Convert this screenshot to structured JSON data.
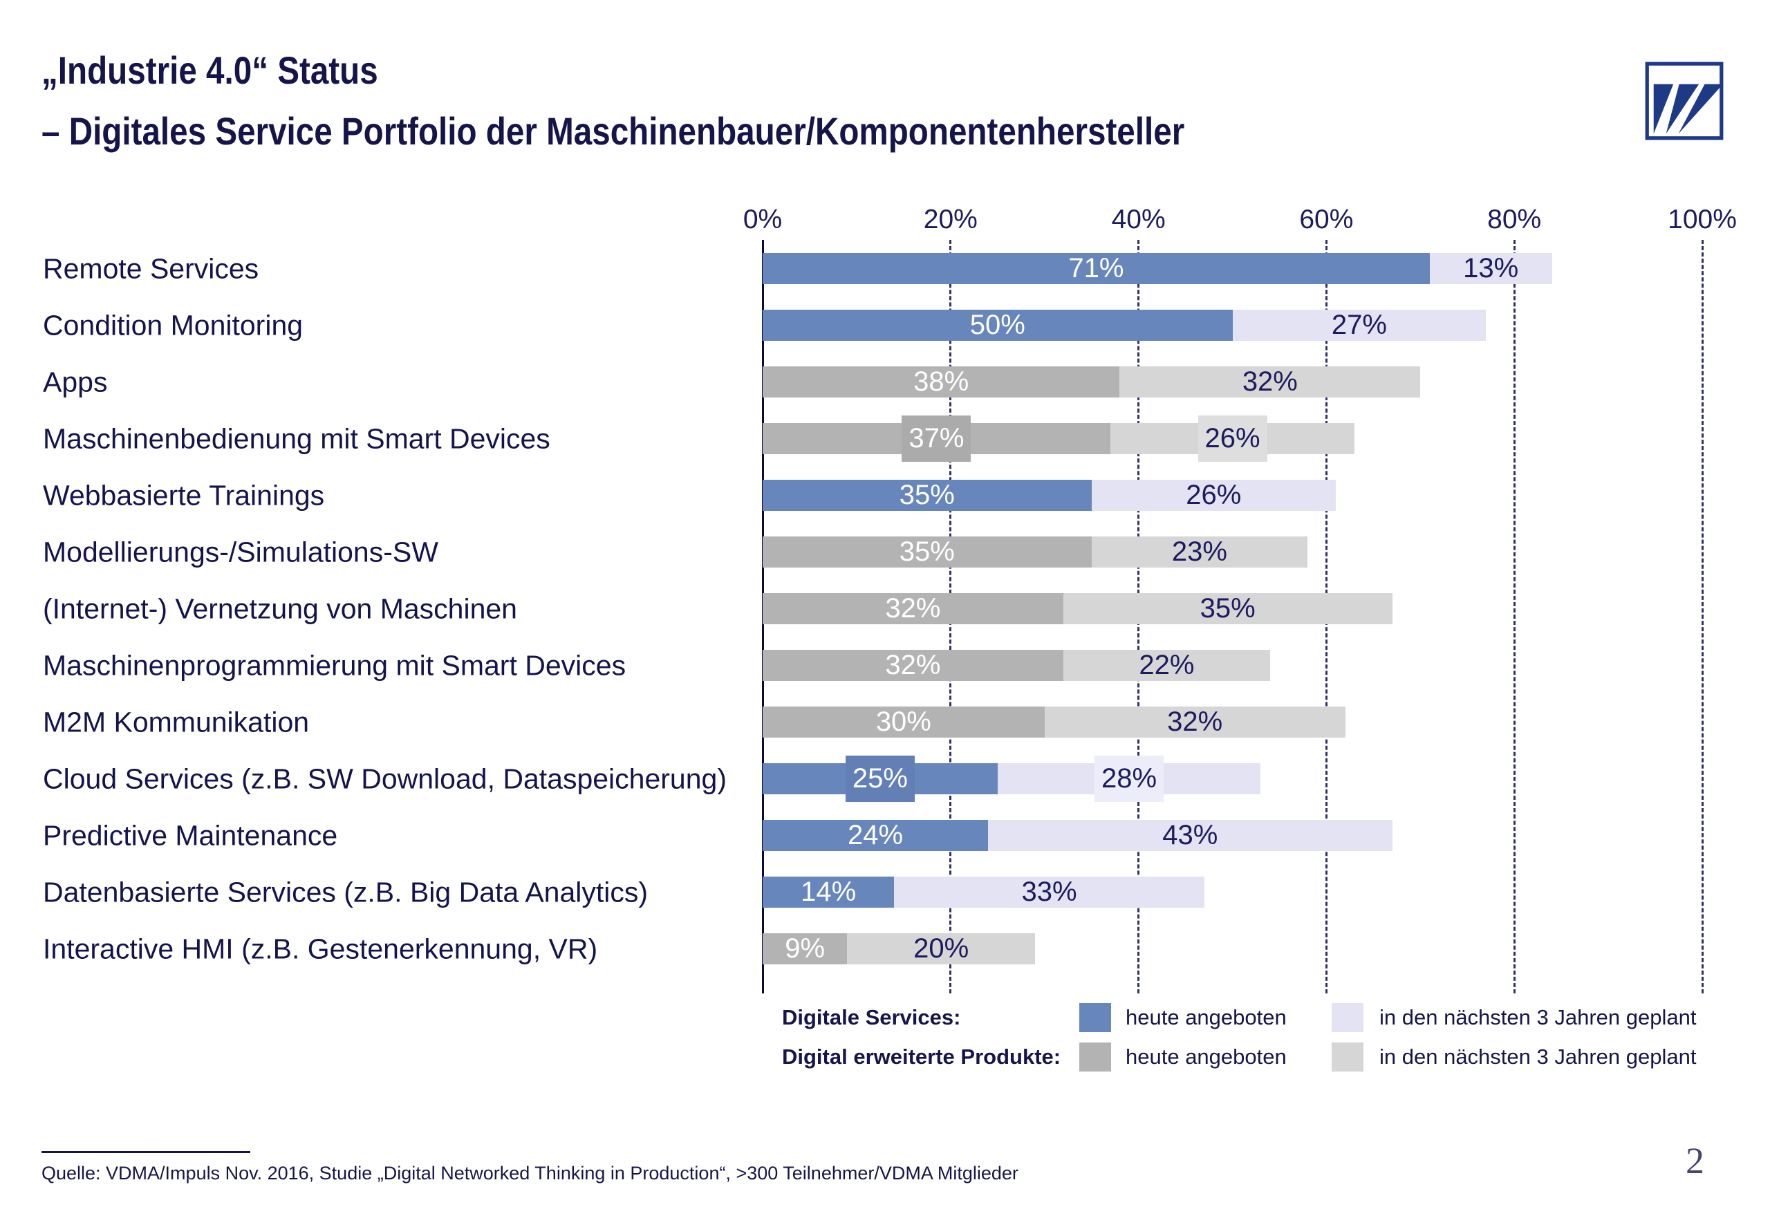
{
  "title": {
    "line1": "„Industrie 4.0“ Status",
    "line2": "– Digitales Service Portfolio der Maschinenbauer/Komponentenhersteller"
  },
  "logo": {
    "icon": "vdma-logo"
  },
  "chart_data": {
    "type": "bar",
    "orientation": "horizontal",
    "stacked": true,
    "xlim": [
      0,
      100
    ],
    "axis_ticks": [
      "0%",
      "20%",
      "40%",
      "60%",
      "80%",
      "100%"
    ],
    "tick_values": [
      0,
      20,
      40,
      60,
      80,
      100
    ],
    "grid": "dashed-vertical",
    "legend_position": "bottom",
    "categories": [
      "Remote Services",
      "Condition Monitoring",
      "Apps",
      "Maschinenbedienung mit Smart Devices",
      "Webbasierte Trainings",
      "Modellierungs-/Simulations-SW",
      "(Internet-) Vernetzung von Maschinen",
      "Maschinenprogrammierung mit Smart Devices",
      "M2M Kommunikation",
      "Cloud Services (z.B. SW Download, Dataspeicherung)",
      "Predictive Maintenance",
      "Datenbasierte Services (z.B. Big Data Analytics)",
      "Interactive HMI (z.B. Gestenerkennung, VR)"
    ],
    "rows": [
      {
        "label": "Remote Services",
        "series": "digitale_services",
        "today": 71,
        "planned": 13,
        "label_boxes": false
      },
      {
        "label": "Condition Monitoring",
        "series": "digitale_services",
        "today": 50,
        "planned": 27,
        "label_boxes": false
      },
      {
        "label": "Apps",
        "series": "digital_erweiterte_produkte",
        "today": 38,
        "planned": 32,
        "label_boxes": false
      },
      {
        "label": "Maschinenbedienung mit Smart Devices",
        "series": "digital_erweiterte_produkte",
        "today": 37,
        "planned": 26,
        "label_boxes": true
      },
      {
        "label": "Webbasierte Trainings",
        "series": "digitale_services",
        "today": 35,
        "planned": 26,
        "label_boxes": false
      },
      {
        "label": "Modellierungs-/Simulations-SW",
        "series": "digital_erweiterte_produkte",
        "today": 35,
        "planned": 23,
        "label_boxes": false
      },
      {
        "label": "(Internet-) Vernetzung von Maschinen",
        "series": "digital_erweiterte_produkte",
        "today": 32,
        "planned": 35,
        "label_boxes": false
      },
      {
        "label": "Maschinenprogrammierung mit Smart Devices",
        "series": "digital_erweiterte_produkte",
        "today": 32,
        "planned": 22,
        "label_boxes": false
      },
      {
        "label": "M2M Kommunikation",
        "series": "digital_erweiterte_produkte",
        "today": 30,
        "planned": 32,
        "label_boxes": false
      },
      {
        "label": "Cloud Services (z.B. SW Download, Dataspeicherung)",
        "series": "digitale_services",
        "today": 25,
        "planned": 28,
        "label_boxes": true
      },
      {
        "label": "Predictive Maintenance",
        "series": "digitale_services",
        "today": 24,
        "planned": 43,
        "label_boxes": false
      },
      {
        "label": "Datenbasierte Services (z.B. Big Data Analytics)",
        "series": "digitale_services",
        "today": 14,
        "planned": 33,
        "label_boxes": false
      },
      {
        "label": "Interactive HMI (z.B. Gestenerkennung, VR)",
        "series": "digital_erweiterte_produkte",
        "today": 9,
        "planned": 20,
        "label_boxes": false
      }
    ],
    "legend": [
      {
        "group": "Digitale Services:",
        "items": [
          {
            "label": "heute angeboten",
            "swatch": "#6786bb"
          },
          {
            "label": "in den nächsten 3 Jahren geplant",
            "swatch": "#e3e3f3"
          }
        ]
      },
      {
        "group": "Digital erweiterte Produkte:",
        "items": [
          {
            "label": "heute angeboten",
            "swatch": "#b3b3b3"
          },
          {
            "label": "in den nächsten 3 Jahren geplant",
            "swatch": "#d6d6d6"
          }
        ]
      }
    ]
  },
  "colors": {
    "navy_text": "#15154a",
    "logo_blue": "#1e3a87",
    "series": {
      "digitale_services": {
        "today": "#6786bb",
        "planned": "#e3e3f3",
        "today_box": "#6280b6",
        "planned_box": "#edecf9",
        "today_label": "#ffffff",
        "planned_label": "#1b1b5e"
      },
      "digital_erweiterte_produkte": {
        "today": "#b3b3b3",
        "planned": "#d6d6d6",
        "today_box": "#ababab",
        "planned_box": "#dedede",
        "today_label": "#ffffff",
        "planned_label": "#1b1b5e"
      }
    }
  },
  "footer": {
    "source": "Quelle: VDMA/Impuls Nov. 2016, Studie „Digital Networked Thinking in Production“, >300 Teilnehmer/VDMA Mitglieder",
    "page": "2"
  }
}
